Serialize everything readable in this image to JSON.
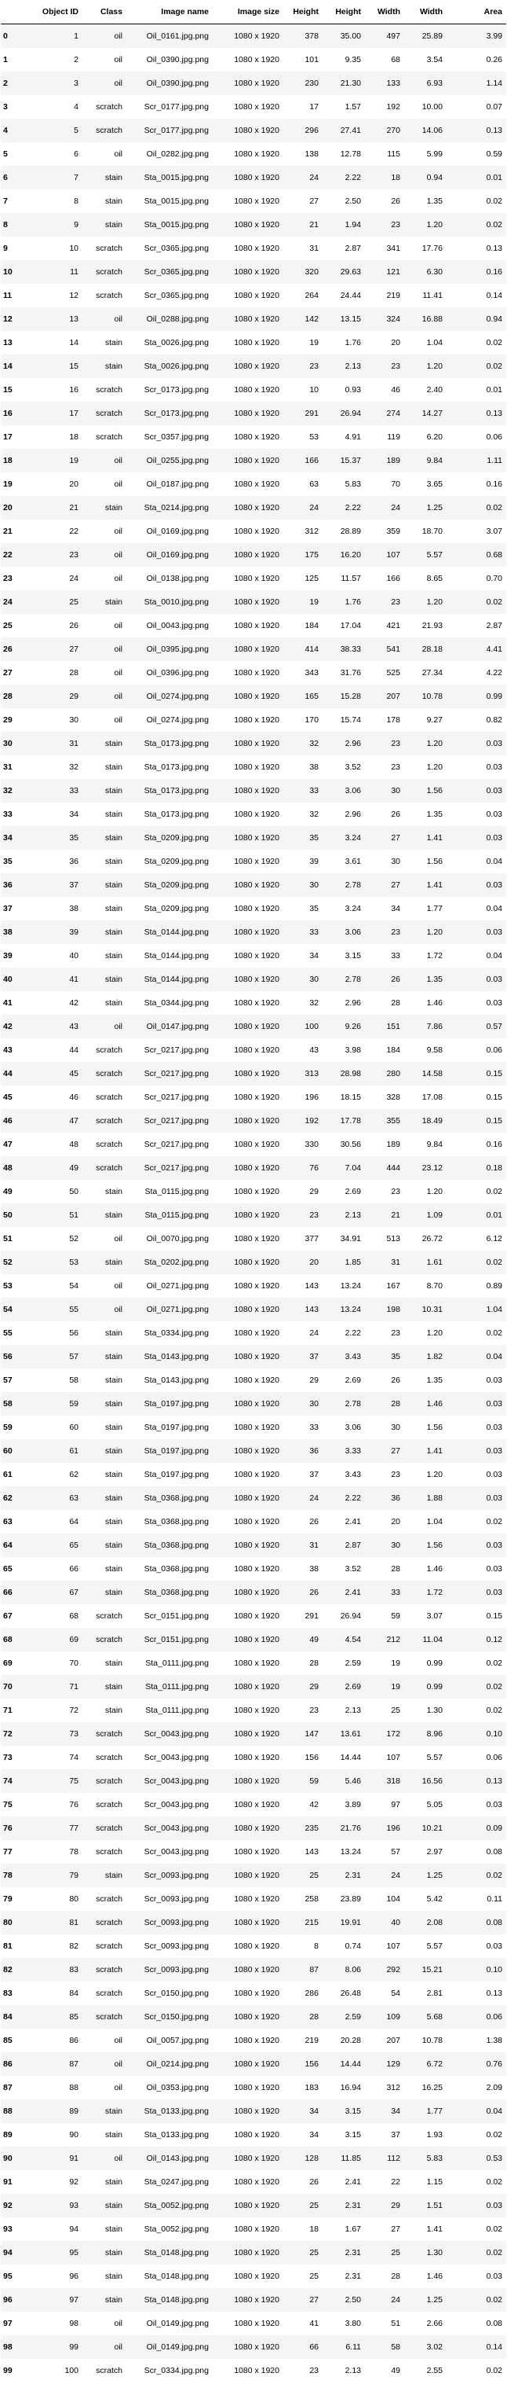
{
  "table": {
    "headers": [
      "",
      "Object ID",
      "Class",
      "Image name",
      "Image size",
      "Height",
      "Height",
      "Width",
      "Width",
      "Area"
    ],
    "rows": [
      [
        "0",
        "1",
        "oil",
        "Oil_0161.jpg.png",
        "1080 x 1920",
        "378",
        "35.00",
        "497",
        "25.89",
        "3.99"
      ],
      [
        "1",
        "2",
        "oil",
        "Oil_0390.jpg.png",
        "1080 x 1920",
        "101",
        "9.35",
        "68",
        "3.54",
        "0.26"
      ],
      [
        "2",
        "3",
        "oil",
        "Oil_0390.jpg.png",
        "1080 x 1920",
        "230",
        "21.30",
        "133",
        "6.93",
        "1.14"
      ],
      [
        "3",
        "4",
        "scratch",
        "Scr_0177.jpg.png",
        "1080 x 1920",
        "17",
        "1.57",
        "192",
        "10.00",
        "0.07"
      ],
      [
        "4",
        "5",
        "scratch",
        "Scr_0177.jpg.png",
        "1080 x 1920",
        "296",
        "27.41",
        "270",
        "14.06",
        "0.13"
      ],
      [
        "5",
        "6",
        "oil",
        "Oil_0282.jpg.png",
        "1080 x 1920",
        "138",
        "12.78",
        "115",
        "5.99",
        "0.59"
      ],
      [
        "6",
        "7",
        "stain",
        "Sta_0015.jpg.png",
        "1080 x 1920",
        "24",
        "2.22",
        "18",
        "0.94",
        "0.01"
      ],
      [
        "7",
        "8",
        "stain",
        "Sta_0015.jpg.png",
        "1080 x 1920",
        "27",
        "2.50",
        "26",
        "1.35",
        "0.02"
      ],
      [
        "8",
        "9",
        "stain",
        "Sta_0015.jpg.png",
        "1080 x 1920",
        "21",
        "1.94",
        "23",
        "1.20",
        "0.02"
      ],
      [
        "9",
        "10",
        "scratch",
        "Scr_0365.jpg.png",
        "1080 x 1920",
        "31",
        "2.87",
        "341",
        "17.76",
        "0.13"
      ],
      [
        "10",
        "11",
        "scratch",
        "Scr_0365.jpg.png",
        "1080 x 1920",
        "320",
        "29.63",
        "121",
        "6.30",
        "0.16"
      ],
      [
        "11",
        "12",
        "scratch",
        "Scr_0365.jpg.png",
        "1080 x 1920",
        "264",
        "24.44",
        "219",
        "11.41",
        "0.14"
      ],
      [
        "12",
        "13",
        "oil",
        "Oil_0288.jpg.png",
        "1080 x 1920",
        "142",
        "13.15",
        "324",
        "16.88",
        "0.94"
      ],
      [
        "13",
        "14",
        "stain",
        "Sta_0026.jpg.png",
        "1080 x 1920",
        "19",
        "1.76",
        "20",
        "1.04",
        "0.02"
      ],
      [
        "14",
        "15",
        "stain",
        "Sta_0026.jpg.png",
        "1080 x 1920",
        "23",
        "2.13",
        "23",
        "1.20",
        "0.02"
      ],
      [
        "15",
        "16",
        "scratch",
        "Scr_0173.jpg.png",
        "1080 x 1920",
        "10",
        "0.93",
        "46",
        "2.40",
        "0.01"
      ],
      [
        "16",
        "17",
        "scratch",
        "Scr_0173.jpg.png",
        "1080 x 1920",
        "291",
        "26.94",
        "274",
        "14.27",
        "0.13"
      ],
      [
        "17",
        "18",
        "scratch",
        "Scr_0357.jpg.png",
        "1080 x 1920",
        "53",
        "4.91",
        "119",
        "6.20",
        "0.06"
      ],
      [
        "18",
        "19",
        "oil",
        "Oil_0255.jpg.png",
        "1080 x 1920",
        "166",
        "15.37",
        "189",
        "9.84",
        "1.11"
      ],
      [
        "19",
        "20",
        "oil",
        "Oil_0187.jpg.png",
        "1080 x 1920",
        "63",
        "5.83",
        "70",
        "3.65",
        "0.16"
      ],
      [
        "20",
        "21",
        "stain",
        "Sta_0214.jpg.png",
        "1080 x 1920",
        "24",
        "2.22",
        "24",
        "1.25",
        "0.02"
      ],
      [
        "21",
        "22",
        "oil",
        "Oil_0169.jpg.png",
        "1080 x 1920",
        "312",
        "28.89",
        "359",
        "18.70",
        "3.07"
      ],
      [
        "22",
        "23",
        "oil",
        "Oil_0169.jpg.png",
        "1080 x 1920",
        "175",
        "16.20",
        "107",
        "5.57",
        "0.68"
      ],
      [
        "23",
        "24",
        "oil",
        "Oil_0138.jpg.png",
        "1080 x 1920",
        "125",
        "11.57",
        "166",
        "8.65",
        "0.70"
      ],
      [
        "24",
        "25",
        "stain",
        "Sta_0010.jpg.png",
        "1080 x 1920",
        "19",
        "1.76",
        "23",
        "1.20",
        "0.02"
      ],
      [
        "25",
        "26",
        "oil",
        "Oil_0043.jpg.png",
        "1080 x 1920",
        "184",
        "17.04",
        "421",
        "21.93",
        "2.87"
      ],
      [
        "26",
        "27",
        "oil",
        "Oil_0395.jpg.png",
        "1080 x 1920",
        "414",
        "38.33",
        "541",
        "28.18",
        "4.41"
      ],
      [
        "27",
        "28",
        "oil",
        "Oil_0396.jpg.png",
        "1080 x 1920",
        "343",
        "31.76",
        "525",
        "27.34",
        "4.22"
      ],
      [
        "28",
        "29",
        "oil",
        "Oil_0274.jpg.png",
        "1080 x 1920",
        "165",
        "15.28",
        "207",
        "10.78",
        "0.99"
      ],
      [
        "29",
        "30",
        "oil",
        "Oil_0274.jpg.png",
        "1080 x 1920",
        "170",
        "15.74",
        "178",
        "9.27",
        "0.82"
      ],
      [
        "30",
        "31",
        "stain",
        "Sta_0173.jpg.png",
        "1080 x 1920",
        "32",
        "2.96",
        "23",
        "1.20",
        "0.03"
      ],
      [
        "31",
        "32",
        "stain",
        "Sta_0173.jpg.png",
        "1080 x 1920",
        "38",
        "3.52",
        "23",
        "1.20",
        "0.03"
      ],
      [
        "32",
        "33",
        "stain",
        "Sta_0173.jpg.png",
        "1080 x 1920",
        "33",
        "3.06",
        "30",
        "1.56",
        "0.03"
      ],
      [
        "33",
        "34",
        "stain",
        "Sta_0173.jpg.png",
        "1080 x 1920",
        "32",
        "2.96",
        "26",
        "1.35",
        "0.03"
      ],
      [
        "34",
        "35",
        "stain",
        "Sta_0209.jpg.png",
        "1080 x 1920",
        "35",
        "3.24",
        "27",
        "1.41",
        "0.03"
      ],
      [
        "35",
        "36",
        "stain",
        "Sta_0209.jpg.png",
        "1080 x 1920",
        "39",
        "3.61",
        "30",
        "1.56",
        "0.04"
      ],
      [
        "36",
        "37",
        "stain",
        "Sta_0209.jpg.png",
        "1080 x 1920",
        "30",
        "2.78",
        "27",
        "1.41",
        "0.03"
      ],
      [
        "37",
        "38",
        "stain",
        "Sta_0209.jpg.png",
        "1080 x 1920",
        "35",
        "3.24",
        "34",
        "1.77",
        "0.04"
      ],
      [
        "38",
        "39",
        "stain",
        "Sta_0144.jpg.png",
        "1080 x 1920",
        "33",
        "3.06",
        "23",
        "1.20",
        "0.03"
      ],
      [
        "39",
        "40",
        "stain",
        "Sta_0144.jpg.png",
        "1080 x 1920",
        "34",
        "3.15",
        "33",
        "1.72",
        "0.04"
      ],
      [
        "40",
        "41",
        "stain",
        "Sta_0144.jpg.png",
        "1080 x 1920",
        "30",
        "2.78",
        "26",
        "1.35",
        "0.03"
      ],
      [
        "41",
        "42",
        "stain",
        "Sta_0344.jpg.png",
        "1080 x 1920",
        "32",
        "2.96",
        "28",
        "1.46",
        "0.03"
      ],
      [
        "42",
        "43",
        "oil",
        "Oil_0147.jpg.png",
        "1080 x 1920",
        "100",
        "9.26",
        "151",
        "7.86",
        "0.57"
      ],
      [
        "43",
        "44",
        "scratch",
        "Scr_0217.jpg.png",
        "1080 x 1920",
        "43",
        "3.98",
        "184",
        "9.58",
        "0.06"
      ],
      [
        "44",
        "45",
        "scratch",
        "Scr_0217.jpg.png",
        "1080 x 1920",
        "313",
        "28.98",
        "280",
        "14.58",
        "0.15"
      ],
      [
        "45",
        "46",
        "scratch",
        "Scr_0217.jpg.png",
        "1080 x 1920",
        "196",
        "18.15",
        "328",
        "17.08",
        "0.15"
      ],
      [
        "46",
        "47",
        "scratch",
        "Scr_0217.jpg.png",
        "1080 x 1920",
        "192",
        "17.78",
        "355",
        "18.49",
        "0.15"
      ],
      [
        "47",
        "48",
        "scratch",
        "Scr_0217.jpg.png",
        "1080 x 1920",
        "330",
        "30.56",
        "189",
        "9.84",
        "0.16"
      ],
      [
        "48",
        "49",
        "scratch",
        "Scr_0217.jpg.png",
        "1080 x 1920",
        "76",
        "7.04",
        "444",
        "23.12",
        "0.18"
      ],
      [
        "49",
        "50",
        "stain",
        "Sta_0115.jpg.png",
        "1080 x 1920",
        "29",
        "2.69",
        "23",
        "1.20",
        "0.02"
      ],
      [
        "50",
        "51",
        "stain",
        "Sta_0115.jpg.png",
        "1080 x 1920",
        "23",
        "2.13",
        "21",
        "1.09",
        "0.01"
      ],
      [
        "51",
        "52",
        "oil",
        "Oil_0070.jpg.png",
        "1080 x 1920",
        "377",
        "34.91",
        "513",
        "26.72",
        "6.12"
      ],
      [
        "52",
        "53",
        "stain",
        "Sta_0202.jpg.png",
        "1080 x 1920",
        "20",
        "1.85",
        "31",
        "1.61",
        "0.02"
      ],
      [
        "53",
        "54",
        "oil",
        "Oil_0271.jpg.png",
        "1080 x 1920",
        "143",
        "13.24",
        "167",
        "8.70",
        "0.89"
      ],
      [
        "54",
        "55",
        "oil",
        "Oil_0271.jpg.png",
        "1080 x 1920",
        "143",
        "13.24",
        "198",
        "10.31",
        "1.04"
      ],
      [
        "55",
        "56",
        "stain",
        "Sta_0334.jpg.png",
        "1080 x 1920",
        "24",
        "2.22",
        "23",
        "1.20",
        "0.02"
      ],
      [
        "56",
        "57",
        "stain",
        "Sta_0143.jpg.png",
        "1080 x 1920",
        "37",
        "3.43",
        "35",
        "1.82",
        "0.04"
      ],
      [
        "57",
        "58",
        "stain",
        "Sta_0143.jpg.png",
        "1080 x 1920",
        "29",
        "2.69",
        "26",
        "1.35",
        "0.03"
      ],
      [
        "58",
        "59",
        "stain",
        "Sta_0197.jpg.png",
        "1080 x 1920",
        "30",
        "2.78",
        "28",
        "1.46",
        "0.03"
      ],
      [
        "59",
        "60",
        "stain",
        "Sta_0197.jpg.png",
        "1080 x 1920",
        "33",
        "3.06",
        "30",
        "1.56",
        "0.03"
      ],
      [
        "60",
        "61",
        "stain",
        "Sta_0197.jpg.png",
        "1080 x 1920",
        "36",
        "3.33",
        "27",
        "1.41",
        "0.03"
      ],
      [
        "61",
        "62",
        "stain",
        "Sta_0197.jpg.png",
        "1080 x 1920",
        "37",
        "3.43",
        "23",
        "1.20",
        "0.03"
      ],
      [
        "62",
        "63",
        "stain",
        "Sta_0368.jpg.png",
        "1080 x 1920",
        "24",
        "2.22",
        "36",
        "1.88",
        "0.03"
      ],
      [
        "63",
        "64",
        "stain",
        "Sta_0368.jpg.png",
        "1080 x 1920",
        "26",
        "2.41",
        "20",
        "1.04",
        "0.02"
      ],
      [
        "64",
        "65",
        "stain",
        "Sta_0368.jpg.png",
        "1080 x 1920",
        "31",
        "2.87",
        "30",
        "1.56",
        "0.03"
      ],
      [
        "65",
        "66",
        "stain",
        "Sta_0368.jpg.png",
        "1080 x 1920",
        "38",
        "3.52",
        "28",
        "1.46",
        "0.03"
      ],
      [
        "66",
        "67",
        "stain",
        "Sta_0368.jpg.png",
        "1080 x 1920",
        "26",
        "2.41",
        "33",
        "1.72",
        "0.03"
      ],
      [
        "67",
        "68",
        "scratch",
        "Scr_0151.jpg.png",
        "1080 x 1920",
        "291",
        "26.94",
        "59",
        "3.07",
        "0.15"
      ],
      [
        "68",
        "69",
        "scratch",
        "Scr_0151.jpg.png",
        "1080 x 1920",
        "49",
        "4.54",
        "212",
        "11.04",
        "0.12"
      ],
      [
        "69",
        "70",
        "stain",
        "Sta_0111.jpg.png",
        "1080 x 1920",
        "28",
        "2.59",
        "19",
        "0.99",
        "0.02"
      ],
      [
        "70",
        "71",
        "stain",
        "Sta_0111.jpg.png",
        "1080 x 1920",
        "29",
        "2.69",
        "19",
        "0.99",
        "0.02"
      ],
      [
        "71",
        "72",
        "stain",
        "Sta_0111.jpg.png",
        "1080 x 1920",
        "23",
        "2.13",
        "25",
        "1.30",
        "0.02"
      ],
      [
        "72",
        "73",
        "scratch",
        "Scr_0043.jpg.png",
        "1080 x 1920",
        "147",
        "13.61",
        "172",
        "8.96",
        "0.10"
      ],
      [
        "73",
        "74",
        "scratch",
        "Scr_0043.jpg.png",
        "1080 x 1920",
        "156",
        "14.44",
        "107",
        "5.57",
        "0.06"
      ],
      [
        "74",
        "75",
        "scratch",
        "Scr_0043.jpg.png",
        "1080 x 1920",
        "59",
        "5.46",
        "318",
        "16.56",
        "0.13"
      ],
      [
        "75",
        "76",
        "scratch",
        "Scr_0043.jpg.png",
        "1080 x 1920",
        "42",
        "3.89",
        "97",
        "5.05",
        "0.03"
      ],
      [
        "76",
        "77",
        "scratch",
        "Scr_0043.jpg.png",
        "1080 x 1920",
        "235",
        "21.76",
        "196",
        "10.21",
        "0.09"
      ],
      [
        "77",
        "78",
        "scratch",
        "Scr_0043.jpg.png",
        "1080 x 1920",
        "143",
        "13.24",
        "57",
        "2.97",
        "0.08"
      ],
      [
        "78",
        "79",
        "stain",
        "Scr_0093.jpg.png",
        "1080 x 1920",
        "25",
        "2.31",
        "24",
        "1.25",
        "0.02"
      ],
      [
        "79",
        "80",
        "scratch",
        "Scr_0093.jpg.png",
        "1080 x 1920",
        "258",
        "23.89",
        "104",
        "5.42",
        "0.11"
      ],
      [
        "80",
        "81",
        "scratch",
        "Scr_0093.jpg.png",
        "1080 x 1920",
        "215",
        "19.91",
        "40",
        "2.08",
        "0.08"
      ],
      [
        "81",
        "82",
        "scratch",
        "Scr_0093.jpg.png",
        "1080 x 1920",
        "8",
        "0.74",
        "107",
        "5.57",
        "0.03"
      ],
      [
        "82",
        "83",
        "scratch",
        "Scr_0093.jpg.png",
        "1080 x 1920",
        "87",
        "8.06",
        "292",
        "15.21",
        "0.10"
      ],
      [
        "83",
        "84",
        "scratch",
        "Scr_0150.jpg.png",
        "1080 x 1920",
        "286",
        "26.48",
        "54",
        "2.81",
        "0.13"
      ],
      [
        "84",
        "85",
        "scratch",
        "Scr_0150.jpg.png",
        "1080 x 1920",
        "28",
        "2.59",
        "109",
        "5.68",
        "0.06"
      ],
      [
        "85",
        "86",
        "oil",
        "Oil_0057.jpg.png",
        "1080 x 1920",
        "219",
        "20.28",
        "207",
        "10.78",
        "1.38"
      ],
      [
        "86",
        "87",
        "oil",
        "Oil_0214.jpg.png",
        "1080 x 1920",
        "156",
        "14.44",
        "129",
        "6.72",
        "0.76"
      ],
      [
        "87",
        "88",
        "oil",
        "Oil_0353.jpg.png",
        "1080 x 1920",
        "183",
        "16.94",
        "312",
        "16.25",
        "2.09"
      ],
      [
        "88",
        "89",
        "stain",
        "Sta_0133.jpg.png",
        "1080 x 1920",
        "34",
        "3.15",
        "34",
        "1.77",
        "0.04"
      ],
      [
        "89",
        "90",
        "stain",
        "Sta_0133.jpg.png",
        "1080 x 1920",
        "34",
        "3.15",
        "37",
        "1.93",
        "0.02"
      ],
      [
        "90",
        "91",
        "oil",
        "Oil_0143.jpg.png",
        "1080 x 1920",
        "128",
        "11.85",
        "112",
        "5.83",
        "0.53"
      ],
      [
        "91",
        "92",
        "stain",
        "Sta_0247.jpg.png",
        "1080 x 1920",
        "26",
        "2.41",
        "22",
        "1.15",
        "0.02"
      ],
      [
        "92",
        "93",
        "stain",
        "Sta_0052.jpg.png",
        "1080 x 1920",
        "25",
        "2.31",
        "29",
        "1.51",
        "0.03"
      ],
      [
        "93",
        "94",
        "stain",
        "Sta_0052.jpg.png",
        "1080 x 1920",
        "18",
        "1.67",
        "27",
        "1.41",
        "0.02"
      ],
      [
        "94",
        "95",
        "stain",
        "Sta_0148.jpg.png",
        "1080 x 1920",
        "25",
        "2.31",
        "25",
        "1.30",
        "0.02"
      ],
      [
        "95",
        "96",
        "stain",
        "Sta_0148.jpg.png",
        "1080 x 1920",
        "25",
        "2.31",
        "28",
        "1.46",
        "0.03"
      ],
      [
        "96",
        "97",
        "stain",
        "Sta_0148.jpg.png",
        "1080 x 1920",
        "27",
        "2.50",
        "24",
        "1.25",
        "0.02"
      ],
      [
        "97",
        "98",
        "oil",
        "Oil_0149.jpg.png",
        "1080 x 1920",
        "41",
        "3.80",
        "51",
        "2.66",
        "0.08"
      ],
      [
        "98",
        "99",
        "oil",
        "Oil_0149.jpg.png",
        "1080 x 1920",
        "66",
        "6.11",
        "58",
        "3.02",
        "0.14"
      ],
      [
        "99",
        "100",
        "scratch",
        "Scr_0334.jpg.png",
        "1080 x 1920",
        "23",
        "2.13",
        "49",
        "2.55",
        "0.02"
      ]
    ]
  }
}
